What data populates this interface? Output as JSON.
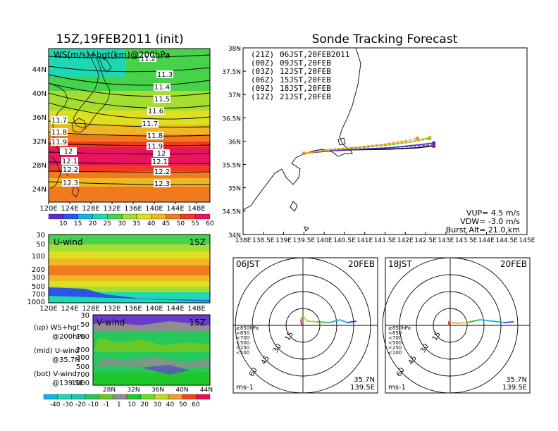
{
  "colors": {
    "ws_levels": [
      "#5a2ed0",
      "#2b54e8",
      "#15b2e8",
      "#1ed8b4",
      "#46d24a",
      "#a5dd32",
      "#dedf20",
      "#f0b724",
      "#f27a1e",
      "#f23a22",
      "#e8155e"
    ],
    "v_levels": [
      "#0fb5e5",
      "#1ed8b4",
      "#1fc3b0",
      "#26c85b",
      "#66c928",
      "#8e8e8e",
      "#1ec82a",
      "#64dd26",
      "#bfdc22",
      "#ef9c22",
      "#f0471e",
      "#e71150"
    ],
    "track": [
      "#000000",
      "#bb22bb",
      "#3030d8",
      "#2ab82a",
      "#d0c020",
      "#f08a2a"
    ]
  },
  "left": {
    "map_title": "15Z,19FEB2011 (init)",
    "map_label": "WS(m/s)+hgt(km)@200hPa",
    "lat_labels": [
      "44N",
      "40N",
      "36N",
      "32N",
      "28N",
      "24N"
    ],
    "lon_labels": [
      "120E",
      "124E",
      "128E",
      "132E",
      "136E",
      "140E",
      "144E",
      "148E"
    ],
    "contour_labels": [
      "11.2",
      "11.3",
      "11.4",
      "11.5",
      "11.6",
      "11.7",
      "11.7",
      "11.8",
      "11.8",
      "11.9",
      "11.9",
      "12",
      "12",
      "12.1",
      "12.1",
      "12.2",
      "12.2",
      "12.3",
      "12.3"
    ],
    "ws_scale": [
      "10",
      "15",
      "20",
      "25",
      "30",
      "35",
      "40",
      "45",
      "50",
      "55",
      "60"
    ],
    "u_label": "U-wind",
    "u_time": "15Z",
    "u_levels": [
      "30",
      "50",
      "100",
      "200",
      "300",
      "500",
      "700",
      "1000"
    ],
    "u_lons": [
      "120E",
      "124E",
      "128E",
      "132E",
      "136E",
      "140E",
      "144E",
      "148E"
    ],
    "v_label": "V-wind",
    "v_time": "15Z",
    "v_levels": [
      "30",
      "50",
      "100",
      "200",
      "300",
      "500",
      "700",
      "1000"
    ],
    "v_lats": [
      "28N",
      "32N",
      "36N",
      "40N",
      "44N"
    ],
    "v_scale": [
      "-40",
      "-30",
      "-20",
      "-10",
      "-1",
      "1",
      "10",
      "20",
      "30",
      "40",
      "50",
      "60"
    ],
    "legend": [
      {
        "a": "(up) WS+hgt",
        "b": "@200hPa"
      },
      {
        "a": "(mid) U-wind",
        "b": "@35.7N"
      },
      {
        "a": "(bot) V-wind",
        "b": "@139.5E"
      }
    ]
  },
  "right": {
    "title": "Sonde Tracking Forecast",
    "track_legend": [
      {
        "utc": "(21Z)",
        "jst": "06JST,20FEB2011"
      },
      {
        "utc": "(00Z)",
        "jst": "09JST,20FEB"
      },
      {
        "utc": "(03Z)",
        "jst": "12JST,20FEB"
      },
      {
        "utc": "(06Z)",
        "jst": "15JST,20FEB"
      },
      {
        "utc": "(09Z)",
        "jst": "18JST,20FEB"
      },
      {
        "utc": "(12Z)",
        "jst": "21JST,20FEB"
      }
    ],
    "lat_labels": [
      "38N",
      "37.5N",
      "37N",
      "36.5N",
      "36N",
      "35.5N",
      "35N",
      "34.5N",
      "34N"
    ],
    "lon_labels": [
      "138E",
      "138.5E",
      "139E",
      "139.5E",
      "140E",
      "140.5E",
      "141E",
      "141.5E",
      "142E",
      "142.5E",
      "143E",
      "143.5E",
      "144E",
      "144.5E",
      "145E"
    ],
    "params": {
      "vup": "VUP= 4.5 m/s",
      "vdw": "VDW= -3.0 m/s",
      "burst": "Burst Alt= 21.0 km"
    },
    "hodos": [
      {
        "time": "06JST",
        "date": "20FEB",
        "lat": "35.7N",
        "lon": "139.5E",
        "unit": "ms-1",
        "rings": [
          "15",
          "30",
          "45",
          "60"
        ],
        "legend": [
          "≥850hPa",
          "<850",
          "<700",
          "<500",
          "<250",
          "<100"
        ]
      },
      {
        "time": "18JST",
        "date": "20FEB",
        "lat": "35.7N",
        "lon": "139.5E",
        "unit": "ms-1",
        "rings": [
          "15",
          "30",
          "45",
          "60"
        ],
        "legend": [
          "≥850hPa",
          "<850",
          "<700",
          "<500",
          "<250",
          "<100"
        ]
      }
    ]
  },
  "chart_data": {
    "type": "line",
    "title": "Sonde Tracking Forecast",
    "xlim": [
      138,
      145
    ],
    "ylim": [
      34,
      38
    ],
    "series": [
      {
        "name": "(21Z) 06JST,20FEB2011",
        "x": [
          139.5,
          140.2,
          140.9,
          141.6,
          142.3,
          142.7
        ],
        "y": [
          35.74,
          35.8,
          35.82,
          35.83,
          35.86,
          35.9
        ]
      },
      {
        "name": "(00Z) 09JST,20FEB",
        "x": [
          139.5,
          140.2,
          140.9,
          141.6,
          142.3,
          142.7
        ],
        "y": [
          35.74,
          35.8,
          35.83,
          35.86,
          35.9,
          35.92
        ]
      },
      {
        "name": "(03Z) 12JST,20FEB",
        "x": [
          139.5,
          140.2,
          140.9,
          141.6,
          142.3,
          142.7
        ],
        "y": [
          35.74,
          35.8,
          35.83,
          35.86,
          35.92,
          35.96
        ]
      },
      {
        "name": "(06Z) 15JST,20FEB",
        "x": [
          139.5,
          140.2,
          140.9,
          141.6,
          142.2,
          142.6
        ],
        "y": [
          35.74,
          35.82,
          35.86,
          35.92,
          35.99,
          36.06
        ]
      },
      {
        "name": "(09Z) 18JST,20FEB",
        "x": [
          139.5,
          140.2,
          140.9,
          141.6,
          142.2,
          142.6
        ],
        "y": [
          35.74,
          35.82,
          35.87,
          35.93,
          36.0,
          36.08
        ]
      },
      {
        "name": "(12Z) 21JST,20FEB",
        "x": [
          139.5,
          140.2,
          140.9,
          141.5,
          142.0,
          142.3
        ],
        "y": [
          35.74,
          35.83,
          35.88,
          35.94,
          36.01,
          36.06
        ]
      }
    ]
  }
}
